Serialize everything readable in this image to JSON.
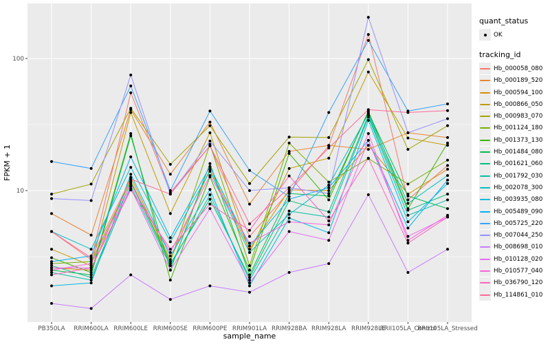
{
  "colors": {
    "page_bg": "#FFFFFF",
    "panel_bg": "#EBEBEB",
    "grid": "#FFFFFF",
    "tick_text": "#4D4D4D",
    "axis_title": "#000000",
    "tick_mark": "#333333",
    "legend_key_bg": "#ECECEC",
    "point": "#000000"
  },
  "legend": {
    "quant_status_title": "quant_status",
    "quant_status_items": [
      {
        "label": "OK"
      }
    ],
    "tracking_id_title": "tracking_id"
  },
  "chart_data": {
    "type": "line",
    "title": "",
    "xlabel": "sample_name",
    "ylabel": "FPKM + 1",
    "y_scale": "log10",
    "ylim": [
      1,
      260
    ],
    "y_ticks": [
      100,
      10
    ],
    "y_minor_ticks": [
      31.62,
      3.162
    ],
    "grid": true,
    "legend_position": "right",
    "point_shape": "filled-circle",
    "categories": [
      "PB350LA",
      "RRIM600LA",
      "RRIM600LE",
      "RRIM600SE",
      "RRIM600PE",
      "RRIM901LA",
      "RRIM928BA",
      "RRIM928LA",
      "RRIM928LE",
      "RRII105LA_Control",
      "RRII105LA_Stressed"
    ],
    "series": [
      {
        "name": "Hb_000058_080",
        "color": "#F8766D",
        "values": [
          4.9,
          3.0,
          55,
          9.7,
          21.8,
          4.5,
          9.8,
          21.8,
          152,
          8.5,
          15.5
        ]
      },
      {
        "name": "Hb_000189_520",
        "color": "#EA8331",
        "values": [
          6.7,
          4.6,
          41,
          13.3,
          33,
          7.9,
          19.8,
          22,
          20.5,
          27.4,
          25.2
        ]
      },
      {
        "name": "Hb_000594_100",
        "color": "#D89000",
        "values": [
          2.6,
          2.5,
          12.6,
          3.0,
          14.5,
          3.6,
          10.1,
          10.0,
          22,
          9.4,
          14.5
        ]
      },
      {
        "name": "Hb_000866_050",
        "color": "#C09B00",
        "values": [
          3.6,
          2.7,
          39,
          6.7,
          27.4,
          3.4,
          14.7,
          17.6,
          79,
          25,
          22
        ]
      },
      {
        "name": "Hb_000983_070",
        "color": "#A3A500",
        "values": [
          9.4,
          11.2,
          42,
          15.8,
          31,
          11.3,
          25.4,
          25.2,
          98,
          20.5,
          31
        ]
      },
      {
        "name": "Hb_001124_180",
        "color": "#7CAE00",
        "values": [
          2.8,
          2.9,
          11.8,
          2.9,
          22.4,
          2.7,
          22.9,
          11.6,
          17.5,
          11.2,
          17
        ]
      },
      {
        "name": "Hb_001373_130",
        "color": "#39B600",
        "values": [
          3.1,
          2.4,
          27,
          2.1,
          12.7,
          2.5,
          19.1,
          8.5,
          40,
          7.3,
          22.9
        ]
      },
      {
        "name": "Hb_001484_080",
        "color": "#00BB4E",
        "values": [
          2.5,
          2.3,
          26,
          2.5,
          16,
          2.3,
          9.5,
          9.1,
          39,
          9.1,
          7.3
        ]
      },
      {
        "name": "Hb_001621_060",
        "color": "#00BF7D",
        "values": [
          2.7,
          2.2,
          11.5,
          2.8,
          8.6,
          2.2,
          8.4,
          6.9,
          37,
          7.1,
          9.4
        ]
      },
      {
        "name": "Hb_001792_030",
        "color": "#00C1A3",
        "values": [
          2.4,
          2.1,
          10.8,
          2.7,
          9.3,
          2.1,
          7.0,
          6.3,
          36,
          6.5,
          8.5
        ]
      },
      {
        "name": "Hb_002078_300",
        "color": "#00BFC4",
        "values": [
          4.9,
          3.6,
          15,
          4.1,
          14,
          3.4,
          6.6,
          11.0,
          38,
          8.0,
          13
        ]
      },
      {
        "name": "Hb_003935_080",
        "color": "#00BAE0",
        "values": [
          1.9,
          2.0,
          13.3,
          3.2,
          10.2,
          1.9,
          6.2,
          4.8,
          34,
          5.8,
          11.3
        ]
      },
      {
        "name": "Hb_005489_090",
        "color": "#00B0F6",
        "values": [
          2.9,
          3.2,
          18,
          4.4,
          15.2,
          3.8,
          8.6,
          10.5,
          24,
          5.2,
          12
        ]
      },
      {
        "name": "Hb_005725_220",
        "color": "#35A2FF",
        "values": [
          16.6,
          14.7,
          62,
          10,
          40,
          14.2,
          9.0,
          39,
          137,
          40,
          45.3
        ]
      },
      {
        "name": "Hb_007044_250",
        "color": "#9590FF",
        "values": [
          8.7,
          8.4,
          75,
          9.4,
          23.7,
          10,
          10.5,
          9.5,
          205,
          27.4,
          35
        ]
      },
      {
        "name": "Hb_008698_010",
        "color": "#C77CFF",
        "values": [
          1.4,
          1.28,
          2.3,
          1.5,
          1.9,
          1.7,
          2.4,
          2.8,
          9.3,
          2.4,
          3.6
        ]
      },
      {
        "name": "Hb_010128_020",
        "color": "#E76BF3",
        "values": [
          2.6,
          2.6,
          10.4,
          2.5,
          7.3,
          2.0,
          4.9,
          4.2,
          24,
          4.5,
          6.3
        ]
      },
      {
        "name": "Hb_010577_040",
        "color": "#FA62DB",
        "values": [
          2.5,
          2.8,
          11.2,
          3.4,
          13,
          4.0,
          5.8,
          5.5,
          27,
          4.2,
          6.5
        ]
      },
      {
        "name": "Hb_036790_120",
        "color": "#FF62BC",
        "values": [
          2.3,
          2.6,
          10.1,
          3.6,
          7.9,
          5.0,
          12.9,
          5.9,
          17.6,
          4.0,
          6.3
        ]
      },
      {
        "name": "Hb_114861_010",
        "color": "#FF6A98",
        "values": [
          4.9,
          3.1,
          12.2,
          9.4,
          21.8,
          5.6,
          10.5,
          21,
          41,
          39,
          40.3
        ]
      }
    ]
  }
}
